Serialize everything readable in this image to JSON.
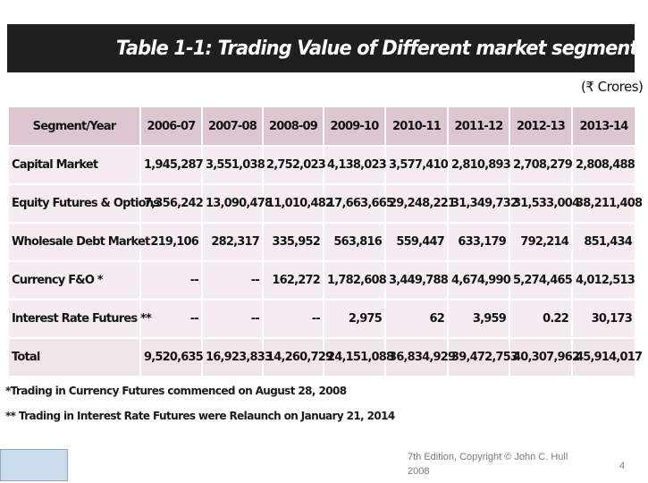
{
  "title": "Table 1-1: Trading Value of Different market segments",
  "units": "(₹ Crores)",
  "table": {
    "header": [
      "Segment/Year",
      "2006-07",
      "2007-08",
      "2008-09",
      "2009-10",
      "2010-11",
      "2011-12",
      "2012-13",
      "2013-14"
    ],
    "rows": [
      {
        "label": "Capital Market",
        "values": [
          "1,945,287",
          "3,551,038",
          "2,752,023",
          "4,138,023",
          "3,577,410",
          "2,810,893",
          "2,708,279",
          "2,808,488"
        ]
      },
      {
        "label": "Equity Futures & Options",
        "values": [
          "7,356,242",
          "13,090,478",
          "11,010,482",
          "17,663,665",
          "29,248,221",
          "31,349,732",
          "31,533,004",
          "38,211,408"
        ]
      },
      {
        "label": "Wholesale Debt Market",
        "values": [
          "219,106",
          "282,317",
          "335,952",
          "563,816",
          "559,447",
          "633,179",
          "792,214",
          "851,434"
        ]
      },
      {
        "label": "Currency F&O *",
        "values": [
          "--",
          "--",
          "162,272",
          "1,782,608",
          "3,449,788",
          "4,674,990",
          "5,274,465",
          "4,012,513"
        ]
      },
      {
        "label": "Interest Rate Futures **",
        "values": [
          "--",
          "--",
          "--",
          "2,975",
          "62",
          "3,959",
          "0.22",
          "30,173"
        ]
      },
      {
        "label": "Total",
        "values": [
          "9,520,635",
          "16,923,833",
          "14,260,729",
          "24,151,088",
          "36,834,929",
          "39,472,753",
          "40,307,962",
          "45,914,017"
        ]
      }
    ]
  },
  "notes": [
    "*Trading in Currency Futures   commenced on August 28, 2008",
    "** Trading in Interest Rate Futures were Relaunch on January 21, 2014"
  ],
  "footer": {
    "copyright_line1": "7th Edition, Copyright © John C. Hull",
    "copyright_line2": "2008",
    "page_number": "4"
  }
}
